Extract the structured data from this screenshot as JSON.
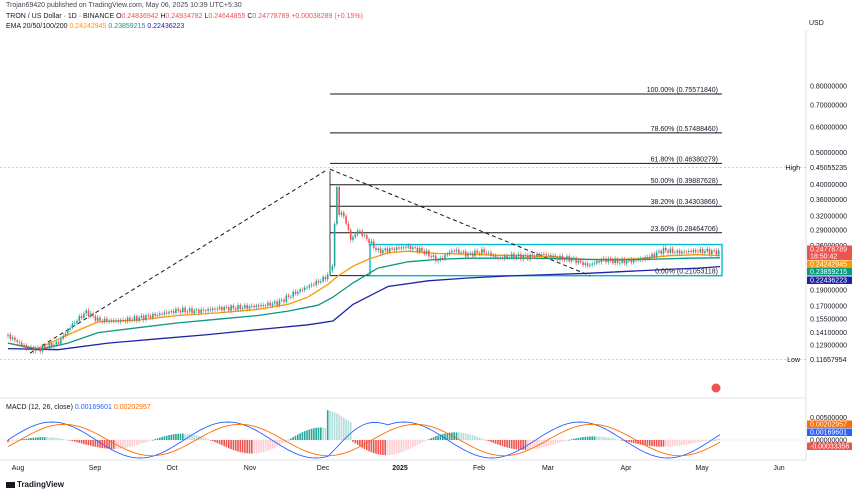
{
  "header": {
    "published": "Trojan69420 published on TradingView.com, May 06, 2025 10:39 UTC+5:30",
    "symbol": "TRON / US Dollar · 1D · BINANCE",
    "ohlc": {
      "o_label": "O",
      "o": "0.24836942",
      "h_label": "H",
      "h": "0.24934782",
      "l_label": "L",
      "l": "0.24644855",
      "c_label": "C",
      "c": "0.24778789",
      "chg": "+0.00038289 (+0.15%)"
    },
    "ema_label": "EMA 20/50/100/200",
    "ema_values": [
      "0.24242945",
      "0.23859215",
      "0.22436223"
    ]
  },
  "macd_label": "MACD (12, 26, close)",
  "macd_values": [
    "0.00169601",
    "0.00202957"
  ],
  "currency": "USD",
  "footer_brand": "TradingView",
  "colors": {
    "up": "#26a69a",
    "down": "#ef5350",
    "ema20": "#ff9800",
    "ema50": "#089981",
    "ema200": "#1e22aa",
    "macd": "#2962ff",
    "signal": "#ff6d00",
    "box": "#00bcd4"
  },
  "chart_data": {
    "type": "candlestick",
    "x_axis": {
      "tick_labels": [
        "Aug",
        "Sep",
        "Oct",
        "Nov",
        "Dec",
        "2025",
        "Feb",
        "Mar",
        "Apr",
        "May",
        "Jun"
      ]
    },
    "price_axis": {
      "scale": "log",
      "tick_labels": [
        "0.80000000",
        "0.70000000",
        "0.60000000",
        "0.50000000",
        "0.40000000",
        "0.36000000",
        "0.32000000",
        "0.29000000",
        "0.26000000",
        "0.19000000",
        "0.17000000",
        "0.15500000",
        "0.14100000",
        "0.12900000"
      ]
    },
    "fib_levels": [
      {
        "label": "100.00% (0.75571840)",
        "price": 0.7557184
      },
      {
        "label": "78.60% (0.57488460)",
        "price": 0.5748846
      },
      {
        "label": "61.80% (0.46380279)",
        "price": 0.46380279
      },
      {
        "label": "50.00% (0.39887628)",
        "price": 0.39887628
      },
      {
        "label": "38.20% (0.34303866)",
        "price": 0.34303866
      },
      {
        "label": "23.60% (0.28464706)",
        "price": 0.28464706
      },
      {
        "label": "0.00% (0.21053118)",
        "price": 0.21053118
      }
    ],
    "high": {
      "label": "High",
      "value": "0.45055235"
    },
    "low": {
      "label": "Low",
      "value": "0.11657954"
    },
    "price_tags": [
      {
        "value": "0.24778789",
        "color": "#ef5350"
      },
      {
        "value": "18:50:42",
        "color": "#ef5350"
      },
      {
        "value": "0.24242945",
        "color": "#ff9800"
      },
      {
        "value": "0.23859215",
        "color": "#089981"
      },
      {
        "value": "0.22436223",
        "color": "#1e22aa"
      }
    ],
    "macd_axis": {
      "tick_labels": [
        "0.00500000",
        "0.00000000"
      ]
    },
    "macd_tags": [
      {
        "value": "0.00202957",
        "color": "#ff6d00"
      },
      {
        "value": "0.00169601",
        "color": "#2962ff"
      },
      {
        "value": "-0.00033356",
        "color": "#ef5350"
      }
    ],
    "series": [
      {
        "name": "Price",
        "points": [
          [
            0,
            0.138
          ],
          [
            18,
            0.127
          ],
          [
            30,
            0.125
          ],
          [
            50,
            0.131
          ],
          [
            65,
            0.15
          ],
          [
            78,
            0.163
          ],
          [
            90,
            0.154
          ],
          [
            110,
            0.153
          ],
          [
            130,
            0.156
          ],
          [
            150,
            0.16
          ],
          [
            170,
            0.165
          ],
          [
            190,
            0.164
          ],
          [
            210,
            0.167
          ],
          [
            230,
            0.168
          ],
          [
            250,
            0.17
          ],
          [
            270,
            0.174
          ],
          [
            285,
            0.185
          ],
          [
            300,
            0.195
          ],
          [
            315,
            0.205
          ],
          [
            322,
            0.215
          ],
          [
            326,
            0.24
          ],
          [
            328,
            0.44
          ],
          [
            330,
            0.33
          ],
          [
            336,
            0.32
          ],
          [
            343,
            0.27
          ],
          [
            350,
            0.29
          ],
          [
            360,
            0.27
          ],
          [
            370,
            0.25
          ],
          [
            385,
            0.254
          ],
          [
            400,
            0.258
          ],
          [
            415,
            0.25
          ],
          [
            430,
            0.234
          ],
          [
            445,
            0.252
          ],
          [
            460,
            0.244
          ],
          [
            475,
            0.25
          ],
          [
            490,
            0.238
          ],
          [
            505,
            0.242
          ],
          [
            520,
            0.24
          ],
          [
            535,
            0.245
          ],
          [
            550,
            0.238
          ],
          [
            565,
            0.236
          ],
          [
            580,
            0.226
          ],
          [
            595,
            0.236
          ],
          [
            610,
            0.232
          ],
          [
            625,
            0.234
          ],
          [
            640,
            0.239
          ],
          [
            655,
            0.252
          ],
          [
            670,
            0.248
          ],
          [
            685,
            0.25
          ],
          [
            700,
            0.25
          ],
          [
            712,
            0.2478
          ]
        ]
      },
      {
        "name": "EMA 20",
        "points": [
          [
            0,
            0.131
          ],
          [
            30,
            0.126
          ],
          [
            60,
            0.139
          ],
          [
            90,
            0.152
          ],
          [
            130,
            0.154
          ],
          [
            170,
            0.159
          ],
          [
            210,
            0.162
          ],
          [
            250,
            0.166
          ],
          [
            280,
            0.172
          ],
          [
            300,
            0.181
          ],
          [
            320,
            0.198
          ],
          [
            330,
            0.21
          ],
          [
            345,
            0.225
          ],
          [
            360,
            0.236
          ],
          [
            380,
            0.247
          ],
          [
            400,
            0.25
          ],
          [
            430,
            0.246
          ],
          [
            460,
            0.245
          ],
          [
            490,
            0.243
          ],
          [
            520,
            0.242
          ],
          [
            550,
            0.24
          ],
          [
            575,
            0.236
          ],
          [
            600,
            0.236
          ],
          [
            630,
            0.237
          ],
          [
            660,
            0.242
          ],
          [
            690,
            0.244
          ],
          [
            712,
            0.2424
          ]
        ]
      },
      {
        "name": "EMA 50",
        "points": [
          [
            0,
            0.131
          ],
          [
            30,
            0.125
          ],
          [
            60,
            0.131
          ],
          [
            90,
            0.141
          ],
          [
            130,
            0.146
          ],
          [
            170,
            0.151
          ],
          [
            210,
            0.155
          ],
          [
            250,
            0.159
          ],
          [
            280,
            0.164
          ],
          [
            310,
            0.171
          ],
          [
            325,
            0.181
          ],
          [
            345,
            0.2
          ],
          [
            370,
            0.222
          ],
          [
            400,
            0.232
          ],
          [
            430,
            0.236
          ],
          [
            460,
            0.238
          ],
          [
            490,
            0.238
          ],
          [
            520,
            0.238
          ],
          [
            560,
            0.237
          ],
          [
            600,
            0.235
          ],
          [
            640,
            0.236
          ],
          [
            680,
            0.238
          ],
          [
            712,
            0.2386
          ]
        ]
      },
      {
        "name": "EMA 200",
        "points": [
          [
            0,
            0.126
          ],
          [
            50,
            0.125
          ],
          [
            100,
            0.131
          ],
          [
            150,
            0.135
          ],
          [
            200,
            0.139
          ],
          [
            250,
            0.144
          ],
          [
            300,
            0.149
          ],
          [
            325,
            0.153
          ],
          [
            345,
            0.172
          ],
          [
            380,
            0.195
          ],
          [
            420,
            0.203
          ],
          [
            460,
            0.207
          ],
          [
            500,
            0.21
          ],
          [
            540,
            0.212
          ],
          [
            580,
            0.214
          ],
          [
            620,
            0.217
          ],
          [
            660,
            0.22
          ],
          [
            690,
            0.222
          ],
          [
            712,
            0.2244
          ]
        ]
      }
    ]
  }
}
